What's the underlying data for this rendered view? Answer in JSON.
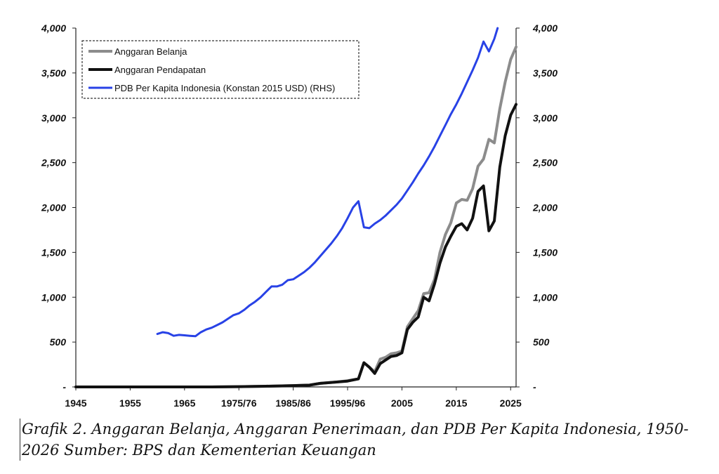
{
  "chart_data": {
    "type": "line",
    "title": "",
    "xlabel": "",
    "ylabel": "",
    "x_ticks": [
      "1945",
      "1955",
      "1965",
      "1975/76",
      "1985/86",
      "1995/96",
      "2005",
      "2015",
      "2025"
    ],
    "x_range": [
      1945,
      2026
    ],
    "y_left_ticks": [
      "-",
      "500",
      "1,000",
      "1,500",
      "2,000",
      "2,500",
      "3,000",
      "3,500",
      "4,000"
    ],
    "y_right_ticks": [
      "-",
      "500",
      "1,000",
      "1,500",
      "2,000",
      "2,500",
      "3,000",
      "3,500",
      "4,000"
    ],
    "ylim_left": [
      0,
      4000
    ],
    "ylim_right": [
      0,
      4000
    ],
    "legend_position": "top-left",
    "series": [
      {
        "name": "Anggaran Belanja",
        "color": "#8c8c8c",
        "axis": "left",
        "points": [
          [
            1945,
            0
          ],
          [
            1950,
            0
          ],
          [
            1955,
            0
          ],
          [
            1960,
            0
          ],
          [
            1965,
            0
          ],
          [
            1970,
            0
          ],
          [
            1975,
            3
          ],
          [
            1980,
            8
          ],
          [
            1985,
            15
          ],
          [
            1988,
            20
          ],
          [
            1990,
            40
          ],
          [
            1993,
            55
          ],
          [
            1995,
            70
          ],
          [
            1997,
            90
          ],
          [
            1998,
            270
          ],
          [
            1999,
            220
          ],
          [
            2000,
            170
          ],
          [
            2001,
            310
          ],
          [
            2002,
            330
          ],
          [
            2003,
            370
          ],
          [
            2004,
            380
          ],
          [
            2005,
            400
          ],
          [
            2006,
            670
          ],
          [
            2007,
            760
          ],
          [
            2008,
            850
          ],
          [
            2009,
            1040
          ],
          [
            2010,
            1050
          ],
          [
            2011,
            1200
          ],
          [
            2012,
            1500
          ],
          [
            2013,
            1700
          ],
          [
            2014,
            1830
          ],
          [
            2015,
            2050
          ],
          [
            2016,
            2090
          ],
          [
            2017,
            2080
          ],
          [
            2018,
            2210
          ],
          [
            2019,
            2460
          ],
          [
            2020,
            2540
          ],
          [
            2021,
            2760
          ],
          [
            2022,
            2720
          ],
          [
            2023,
            3100
          ],
          [
            2024,
            3400
          ],
          [
            2025,
            3650
          ],
          [
            2026,
            3790
          ]
        ]
      },
      {
        "name": "Anggaran Pendapatan",
        "color": "#111111",
        "axis": "left",
        "points": [
          [
            1945,
            0
          ],
          [
            1950,
            0
          ],
          [
            1955,
            0
          ],
          [
            1960,
            0
          ],
          [
            1965,
            0
          ],
          [
            1970,
            0
          ],
          [
            1975,
            3
          ],
          [
            1980,
            8
          ],
          [
            1985,
            15
          ],
          [
            1988,
            20
          ],
          [
            1990,
            40
          ],
          [
            1993,
            55
          ],
          [
            1995,
            65
          ],
          [
            1997,
            90
          ],
          [
            1998,
            270
          ],
          [
            1999,
            220
          ],
          [
            2000,
            150
          ],
          [
            2001,
            260
          ],
          [
            2002,
            300
          ],
          [
            2003,
            340
          ],
          [
            2004,
            350
          ],
          [
            2005,
            380
          ],
          [
            2006,
            640
          ],
          [
            2007,
            720
          ],
          [
            2008,
            780
          ],
          [
            2009,
            1000
          ],
          [
            2010,
            960
          ],
          [
            2011,
            1150
          ],
          [
            2012,
            1380
          ],
          [
            2013,
            1560
          ],
          [
            2014,
            1680
          ],
          [
            2015,
            1790
          ],
          [
            2016,
            1820
          ],
          [
            2017,
            1750
          ],
          [
            2018,
            1880
          ],
          [
            2019,
            2180
          ],
          [
            2020,
            2240
          ],
          [
            2021,
            1740
          ],
          [
            2022,
            1850
          ],
          [
            2023,
            2450
          ],
          [
            2024,
            2800
          ],
          [
            2025,
            3030
          ],
          [
            2026,
            3150
          ]
        ]
      },
      {
        "name": "PDB Per Kapita Indonesia (Konstan 2015 USD) (RHS)",
        "color": "#2842e6",
        "axis": "right",
        "points": [
          [
            1960,
            590
          ],
          [
            1961,
            610
          ],
          [
            1962,
            600
          ],
          [
            1963,
            570
          ],
          [
            1964,
            580
          ],
          [
            1965,
            575
          ],
          [
            1966,
            570
          ],
          [
            1967,
            565
          ],
          [
            1968,
            610
          ],
          [
            1969,
            640
          ],
          [
            1970,
            660
          ],
          [
            1971,
            690
          ],
          [
            1972,
            720
          ],
          [
            1973,
            760
          ],
          [
            1974,
            800
          ],
          [
            1975,
            820
          ],
          [
            1976,
            860
          ],
          [
            1977,
            910
          ],
          [
            1978,
            950
          ],
          [
            1979,
            1000
          ],
          [
            1980,
            1060
          ],
          [
            1981,
            1120
          ],
          [
            1982,
            1120
          ],
          [
            1983,
            1140
          ],
          [
            1984,
            1190
          ],
          [
            1985,
            1200
          ],
          [
            1986,
            1240
          ],
          [
            1987,
            1280
          ],
          [
            1988,
            1330
          ],
          [
            1989,
            1390
          ],
          [
            1990,
            1460
          ],
          [
            1991,
            1530
          ],
          [
            1992,
            1600
          ],
          [
            1993,
            1680
          ],
          [
            1994,
            1770
          ],
          [
            1995,
            1880
          ],
          [
            1996,
            2000
          ],
          [
            1997,
            2070
          ],
          [
            1998,
            1780
          ],
          [
            1999,
            1770
          ],
          [
            2000,
            1820
          ],
          [
            2001,
            1860
          ],
          [
            2002,
            1910
          ],
          [
            2003,
            1970
          ],
          [
            2004,
            2030
          ],
          [
            2005,
            2100
          ],
          [
            2006,
            2190
          ],
          [
            2007,
            2280
          ],
          [
            2008,
            2380
          ],
          [
            2009,
            2470
          ],
          [
            2010,
            2570
          ],
          [
            2011,
            2680
          ],
          [
            2012,
            2800
          ],
          [
            2013,
            2920
          ],
          [
            2014,
            3040
          ],
          [
            2015,
            3150
          ],
          [
            2016,
            3270
          ],
          [
            2017,
            3400
          ],
          [
            2018,
            3530
          ],
          [
            2019,
            3670
          ],
          [
            2020,
            3850
          ],
          [
            2021,
            3740
          ],
          [
            2022,
            3880
          ],
          [
            2022.6,
            4000
          ]
        ]
      }
    ]
  },
  "caption": {
    "text": "Grafik 2. Anggaran Belanja, Anggaran Penerimaan, dan PDB Per Kapita Indonesia, 1950-2026 Sumber: BPS dan Kementerian Keuangan"
  }
}
